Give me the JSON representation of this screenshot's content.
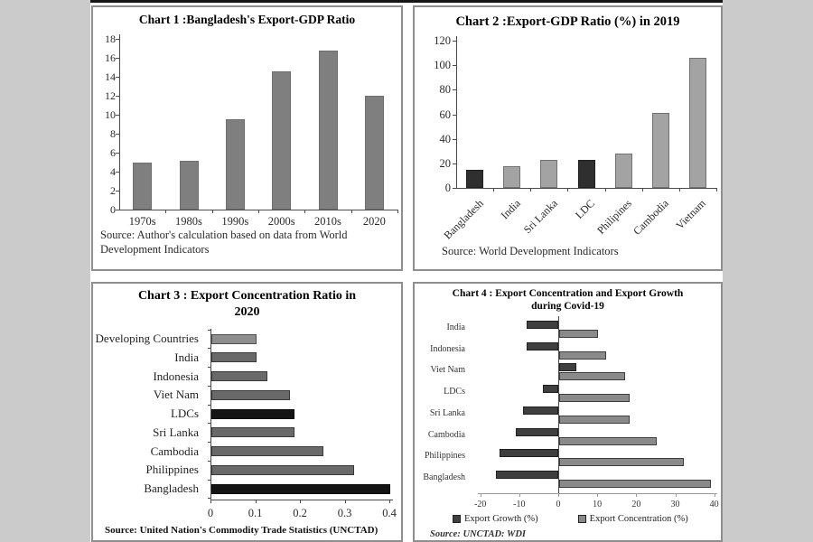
{
  "page": {
    "background_color": "#cbcbcb",
    "paper_color": "#ffffff",
    "frame_line_color": "#161616"
  },
  "chart_data": [
    {
      "type": "bar",
      "title": "Chart 1 :Bangladesh's Export-GDP Ratio",
      "categories": [
        "1970s",
        "1980s",
        "1990s",
        "2000s",
        "2010s",
        "2020"
      ],
      "values": [
        5.0,
        5.1,
        9.5,
        14.6,
        16.8,
        12.0
      ],
      "ylim": [
        0,
        18
      ],
      "yticks": [
        0,
        2,
        4,
        6,
        8,
        10,
        12,
        14,
        16,
        18
      ],
      "bar_color": "#7f7f7f",
      "grid": "off",
      "source": "Source: Author's calculation based on data from World\nDevelopment Indicators"
    },
    {
      "type": "bar",
      "title": "Chart 2 :Export-GDP Ratio (%) in 2019",
      "categories": [
        "Bangladesh",
        "India",
        "Sri Lanka",
        "LDC",
        "Philipines",
        "Cambodia",
        "Vietnam"
      ],
      "values": [
        15,
        18,
        22.5,
        23,
        28,
        61,
        106
      ],
      "ylim": [
        0,
        120
      ],
      "yticks": [
        0,
        20,
        40,
        60,
        80,
        100,
        120
      ],
      "bar_colors": [
        "#2f2f2f",
        "#a3a3a3",
        "#a3a3a3",
        "#2f2f2f",
        "#a3a3a3",
        "#a3a3a3",
        "#a3a3a3"
      ],
      "grid": "off",
      "source": "Source: World Development Indicators"
    },
    {
      "type": "bar",
      "orientation": "horizontal",
      "title": "Chart 3 : Export Concentration Ratio in\n2020",
      "categories": [
        "Developing Countries",
        "India",
        "Indonesia",
        "Viet Nam",
        "LDCs",
        "Sri Lanka",
        "Cambodia",
        "Philippines",
        "Bangladesh"
      ],
      "values": [
        0.1,
        0.1,
        0.125,
        0.175,
        0.185,
        0.185,
        0.25,
        0.32,
        0.4
      ],
      "xlim": [
        0,
        0.4
      ],
      "xticks": [
        0,
        0.1,
        0.2,
        0.3,
        0.4
      ],
      "bar_colors": [
        "#8e8e8e",
        "#696969",
        "#696969",
        "#696969",
        "#141414",
        "#696969",
        "#696969",
        "#696969",
        "#141414"
      ],
      "grid": "off",
      "source": "Source: United Nation's Commodity Trade Statistics (UNCTAD)"
    },
    {
      "type": "bar",
      "orientation": "horizontal-grouped",
      "title": "Chart 4 : Export Concentration and Export Growth\nduring Covid-19",
      "categories": [
        "India",
        "Indonesia",
        "Viet Nam",
        "LDCs",
        "Sri Lanka",
        "Cambodia",
        "Philippines",
        "Bangladesh"
      ],
      "series": [
        {
          "name": "Export Growth (%)",
          "color": "#3f3f3f",
          "values": [
            -8,
            -8,
            4.5,
            -4,
            -9,
            -11,
            -15,
            -16
          ]
        },
        {
          "name": "Export Concentration (%)",
          "color": "#8a8a8a",
          "values": [
            10,
            12,
            17,
            18,
            18,
            25,
            32,
            39
          ]
        }
      ],
      "xlim": [
        -20,
        40
      ],
      "xticks": [
        -20,
        -10,
        0,
        10,
        20,
        30,
        40
      ],
      "grid": "off",
      "legend_position": "bottom",
      "source": "Source: UNCTAD: WDI"
    }
  ]
}
